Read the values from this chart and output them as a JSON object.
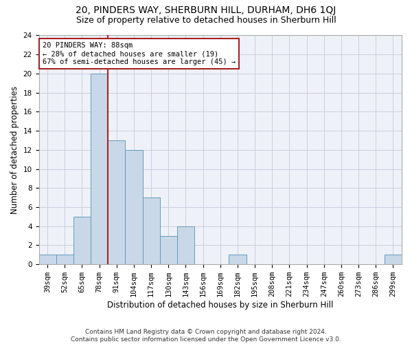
{
  "title1": "20, PINDERS WAY, SHERBURN HILL, DURHAM, DH6 1QJ",
  "title2": "Size of property relative to detached houses in Sherburn Hill",
  "xlabel": "Distribution of detached houses by size in Sherburn Hill",
  "ylabel": "Number of detached properties",
  "categories": [
    "39sqm",
    "52sqm",
    "65sqm",
    "78sqm",
    "91sqm",
    "104sqm",
    "117sqm",
    "130sqm",
    "143sqm",
    "156sqm",
    "169sqm",
    "182sqm",
    "195sqm",
    "208sqm",
    "221sqm",
    "234sqm",
    "247sqm",
    "260sqm",
    "273sqm",
    "286sqm",
    "299sqm"
  ],
  "values": [
    1,
    1,
    5,
    20,
    13,
    12,
    7,
    3,
    4,
    0,
    0,
    1,
    0,
    0,
    0,
    0,
    0,
    0,
    0,
    0,
    1
  ],
  "bar_color": "#c8d8e8",
  "bar_edge_color": "#6699bb",
  "vline_x": 3.5,
  "vline_color": "#aa2222",
  "annotation_text": "20 PINDERS WAY: 88sqm\n← 28% of detached houses are smaller (19)\n67% of semi-detached houses are larger (45) →",
  "annotation_box_color": "#ffffff",
  "annotation_box_edge": "#aa2222",
  "ylim": [
    0,
    24
  ],
  "yticks": [
    0,
    2,
    4,
    6,
    8,
    10,
    12,
    14,
    16,
    18,
    20,
    22,
    24
  ],
  "grid_color": "#ccccdd",
  "background_color": "#eef2f8",
  "footer": "Contains HM Land Registry data © Crown copyright and database right 2024.\nContains public sector information licensed under the Open Government Licence v3.0.",
  "title1_fontsize": 10,
  "title2_fontsize": 9,
  "xlabel_fontsize": 8.5,
  "ylabel_fontsize": 8.5,
  "tick_fontsize": 7.5,
  "footer_fontsize": 6.5,
  "annot_fontsize": 7.5
}
